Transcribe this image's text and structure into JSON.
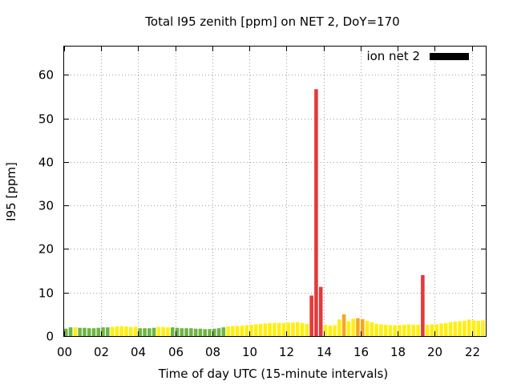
{
  "chart_data": {
    "type": "bar",
    "title": "Total I95 zenith [ppm] on NET 2, DoY=170",
    "xlabel": "Time of day UTC (15-minute intervals)",
    "ylabel": "I95 [ppm]",
    "xlim": [
      0,
      22.75
    ],
    "ylim": [
      0,
      66.5
    ],
    "x_ticks": [
      {
        "value": 0,
        "label": "00"
      },
      {
        "value": 2,
        "label": "02"
      },
      {
        "value": 4,
        "label": "04"
      },
      {
        "value": 6,
        "label": "06"
      },
      {
        "value": 8,
        "label": "08"
      },
      {
        "value": 10,
        "label": "10"
      },
      {
        "value": 12,
        "label": "12"
      },
      {
        "value": 14,
        "label": "14"
      },
      {
        "value": 16,
        "label": "16"
      },
      {
        "value": 18,
        "label": "18"
      },
      {
        "value": 20,
        "label": "20"
      },
      {
        "value": 22,
        "label": "22"
      }
    ],
    "y_ticks": [
      {
        "value": 0,
        "label": "0"
      },
      {
        "value": 10,
        "label": "10"
      },
      {
        "value": 20,
        "label": "20"
      },
      {
        "value": 30,
        "label": "30"
      },
      {
        "value": 40,
        "label": "40"
      },
      {
        "value": 50,
        "label": "50"
      },
      {
        "value": 60,
        "label": "60"
      }
    ],
    "grid": true,
    "legend": {
      "label": "ion net 2",
      "color": "#000000",
      "placement": "top-right"
    },
    "colors": {
      "green": "#6fb544",
      "yellow": "#ffee11",
      "orange": "#f5a623",
      "red": "#e5393a"
    },
    "series": [
      {
        "bars": [
          {
            "t": 0.0,
            "v": 1.7,
            "c": "green"
          },
          {
            "t": 0.25,
            "v": 2.0,
            "c": "green"
          },
          {
            "t": 0.5,
            "v": 2.0,
            "c": "yellow"
          },
          {
            "t": 0.75,
            "v": 1.9,
            "c": "green"
          },
          {
            "t": 1.0,
            "v": 1.9,
            "c": "green"
          },
          {
            "t": 1.25,
            "v": 1.8,
            "c": "green"
          },
          {
            "t": 1.5,
            "v": 1.8,
            "c": "green"
          },
          {
            "t": 1.75,
            "v": 1.9,
            "c": "green"
          },
          {
            "t": 2.0,
            "v": 2.0,
            "c": "green"
          },
          {
            "t": 2.25,
            "v": 2.0,
            "c": "green"
          },
          {
            "t": 2.5,
            "v": 2.1,
            "c": "yellow"
          },
          {
            "t": 2.75,
            "v": 2.2,
            "c": "yellow"
          },
          {
            "t": 3.0,
            "v": 2.3,
            "c": "yellow"
          },
          {
            "t": 3.25,
            "v": 2.2,
            "c": "yellow"
          },
          {
            "t": 3.5,
            "v": 2.1,
            "c": "yellow"
          },
          {
            "t": 3.75,
            "v": 2.1,
            "c": "yellow"
          },
          {
            "t": 4.0,
            "v": 1.8,
            "c": "green"
          },
          {
            "t": 4.25,
            "v": 1.8,
            "c": "green"
          },
          {
            "t": 4.5,
            "v": 1.8,
            "c": "green"
          },
          {
            "t": 4.75,
            "v": 1.9,
            "c": "green"
          },
          {
            "t": 5.0,
            "v": 2.1,
            "c": "yellow"
          },
          {
            "t": 5.25,
            "v": 2.1,
            "c": "yellow"
          },
          {
            "t": 5.5,
            "v": 2.0,
            "c": "yellow"
          },
          {
            "t": 5.75,
            "v": 2.0,
            "c": "green"
          },
          {
            "t": 6.0,
            "v": 1.9,
            "c": "green"
          },
          {
            "t": 6.25,
            "v": 1.8,
            "c": "green"
          },
          {
            "t": 6.5,
            "v": 1.8,
            "c": "green"
          },
          {
            "t": 6.75,
            "v": 1.8,
            "c": "green"
          },
          {
            "t": 7.0,
            "v": 1.7,
            "c": "green"
          },
          {
            "t": 7.25,
            "v": 1.7,
            "c": "green"
          },
          {
            "t": 7.5,
            "v": 1.6,
            "c": "green"
          },
          {
            "t": 7.75,
            "v": 1.6,
            "c": "green"
          },
          {
            "t": 8.0,
            "v": 1.7,
            "c": "green"
          },
          {
            "t": 8.25,
            "v": 1.8,
            "c": "green"
          },
          {
            "t": 8.5,
            "v": 2.0,
            "c": "green"
          },
          {
            "t": 8.75,
            "v": 2.2,
            "c": "yellow"
          },
          {
            "t": 9.0,
            "v": 2.3,
            "c": "yellow"
          },
          {
            "t": 9.25,
            "v": 2.3,
            "c": "yellow"
          },
          {
            "t": 9.5,
            "v": 2.4,
            "c": "yellow"
          },
          {
            "t": 9.75,
            "v": 2.5,
            "c": "yellow"
          },
          {
            "t": 10.0,
            "v": 2.6,
            "c": "yellow"
          },
          {
            "t": 10.25,
            "v": 2.7,
            "c": "yellow"
          },
          {
            "t": 10.5,
            "v": 2.8,
            "c": "yellow"
          },
          {
            "t": 10.75,
            "v": 2.9,
            "c": "yellow"
          },
          {
            "t": 11.0,
            "v": 3.0,
            "c": "yellow"
          },
          {
            "t": 11.25,
            "v": 3.0,
            "c": "yellow"
          },
          {
            "t": 11.5,
            "v": 3.0,
            "c": "yellow"
          },
          {
            "t": 11.75,
            "v": 3.0,
            "c": "yellow"
          },
          {
            "t": 12.0,
            "v": 3.1,
            "c": "yellow"
          },
          {
            "t": 12.25,
            "v": 3.1,
            "c": "yellow"
          },
          {
            "t": 12.5,
            "v": 3.2,
            "c": "yellow"
          },
          {
            "t": 12.75,
            "v": 3.0,
            "c": "yellow"
          },
          {
            "t": 13.0,
            "v": 2.8,
            "c": "yellow"
          },
          {
            "t": 13.25,
            "v": 9.3,
            "c": "red"
          },
          {
            "t": 13.5,
            "v": 56.7,
            "c": "red"
          },
          {
            "t": 13.75,
            "v": 11.3,
            "c": "red"
          },
          {
            "t": 14.0,
            "v": 2.6,
            "c": "yellow"
          },
          {
            "t": 14.25,
            "v": 2.4,
            "c": "yellow"
          },
          {
            "t": 14.5,
            "v": 2.5,
            "c": "yellow"
          },
          {
            "t": 14.75,
            "v": 3.8,
            "c": "yellow"
          },
          {
            "t": 15.0,
            "v": 5.0,
            "c": "orange"
          },
          {
            "t": 15.25,
            "v": 3.4,
            "c": "yellow"
          },
          {
            "t": 15.5,
            "v": 4.0,
            "c": "yellow"
          },
          {
            "t": 15.75,
            "v": 4.1,
            "c": "orange"
          },
          {
            "t": 16.0,
            "v": 3.9,
            "c": "orange"
          },
          {
            "t": 16.25,
            "v": 3.5,
            "c": "yellow"
          },
          {
            "t": 16.5,
            "v": 3.2,
            "c": "yellow"
          },
          {
            "t": 16.75,
            "v": 2.8,
            "c": "yellow"
          },
          {
            "t": 17.0,
            "v": 2.7,
            "c": "yellow"
          },
          {
            "t": 17.25,
            "v": 2.6,
            "c": "yellow"
          },
          {
            "t": 17.5,
            "v": 2.5,
            "c": "yellow"
          },
          {
            "t": 17.75,
            "v": 2.5,
            "c": "yellow"
          },
          {
            "t": 18.0,
            "v": 2.5,
            "c": "yellow"
          },
          {
            "t": 18.25,
            "v": 2.6,
            "c": "yellow"
          },
          {
            "t": 18.5,
            "v": 2.7,
            "c": "yellow"
          },
          {
            "t": 18.75,
            "v": 2.6,
            "c": "yellow"
          },
          {
            "t": 19.0,
            "v": 2.6,
            "c": "yellow"
          },
          {
            "t": 19.25,
            "v": 14.0,
            "c": "red"
          },
          {
            "t": 19.5,
            "v": 2.6,
            "c": "yellow"
          },
          {
            "t": 19.75,
            "v": 2.7,
            "c": "yellow"
          },
          {
            "t": 20.0,
            "v": 2.7,
            "c": "yellow"
          },
          {
            "t": 20.25,
            "v": 2.9,
            "c": "yellow"
          },
          {
            "t": 20.5,
            "v": 3.0,
            "c": "yellow"
          },
          {
            "t": 20.75,
            "v": 3.2,
            "c": "yellow"
          },
          {
            "t": 21.0,
            "v": 3.3,
            "c": "yellow"
          },
          {
            "t": 21.25,
            "v": 3.4,
            "c": "yellow"
          },
          {
            "t": 21.5,
            "v": 3.5,
            "c": "yellow"
          },
          {
            "t": 21.75,
            "v": 3.8,
            "c": "yellow"
          },
          {
            "t": 22.0,
            "v": 3.6,
            "c": "yellow"
          },
          {
            "t": 22.25,
            "v": 3.5,
            "c": "yellow"
          },
          {
            "t": 22.5,
            "v": 3.6,
            "c": "yellow"
          }
        ]
      }
    ]
  }
}
